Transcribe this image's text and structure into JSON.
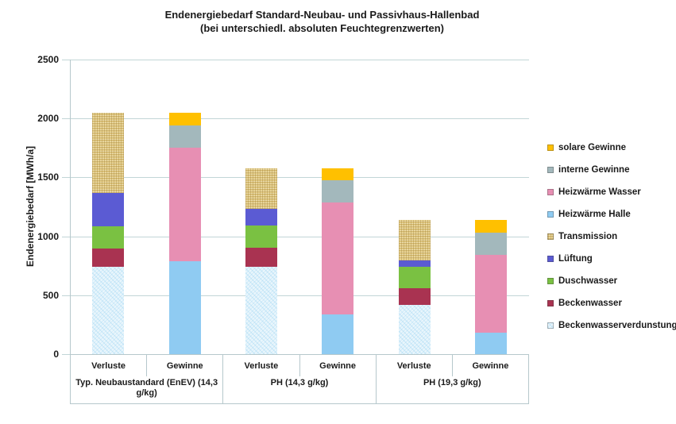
{
  "style": {
    "grid_color": "#C2D6D7",
    "axis_color": "#B6C8CC",
    "text_color": "#1A1A1A",
    "background": "#FFFFFF"
  },
  "chart_data": {
    "type": "bar",
    "stacked": true,
    "title_line1": "Endenergiebedarf Standard-Neubau- und  Passivhaus-Hallenbad",
    "title_line2": "(bei unterschiedl. absoluten Feuchtegrenzwerten)",
    "ylabel": "Endenergiebedarf  [MWh/a]",
    "unit": "MWh/a",
    "ylim": [
      0,
      2500
    ],
    "ytick_step": 500,
    "yticks": [
      0,
      500,
      1000,
      1500,
      2000,
      2500
    ],
    "grid": true,
    "legend_position": "right",
    "legend": [
      {
        "label": "solare Gewinne",
        "color": "#FFC000",
        "texture": "none"
      },
      {
        "label": "interne Gewinne",
        "color": "#A3B8BC",
        "texture": "none"
      },
      {
        "label": "Heizwärme Wasser",
        "color": "#E78FB3",
        "texture": "none"
      },
      {
        "label": "Heizwärme Halle",
        "color": "#8FCBF2",
        "texture": "none"
      },
      {
        "label": "Transmission",
        "color": "#E3CB84",
        "texture": "weave"
      },
      {
        "label": "Lüftung",
        "color": "#5B5BD3",
        "texture": "none"
      },
      {
        "label": "Duschwasser",
        "color": "#7AC142",
        "texture": "none"
      },
      {
        "label": "Beckenwasser",
        "color": "#A93351",
        "texture": "none"
      },
      {
        "label": "Beckenwasserverdunstung",
        "color": "#EAF6FC",
        "texture": "speckle"
      }
    ],
    "groups": [
      {
        "label": "Typ. Neubaustandard (EnEV) (14,3 g/kg)",
        "bars": [
          {
            "label": "Verluste",
            "segments": [
              {
                "series": "Beckenwasserverdunstung",
                "value": 740
              },
              {
                "series": "Beckenwasser",
                "value": 155
              },
              {
                "series": "Duschwasser",
                "value": 190
              },
              {
                "series": "Lüftung",
                "value": 285
              },
              {
                "series": "Transmission",
                "value": 680
              }
            ]
          },
          {
            "label": "Gewinne",
            "segments": [
              {
                "series": "Heizwärme Halle",
                "value": 790
              },
              {
                "series": "Heizwärme Wasser",
                "value": 960
              },
              {
                "series": "interne Gewinne",
                "value": 190
              },
              {
                "series": "solare Gewinne",
                "value": 110
              }
            ]
          }
        ]
      },
      {
        "label": "PH (14,3 g/kg)",
        "bars": [
          {
            "label": "Verluste",
            "segments": [
              {
                "series": "Beckenwasserverdunstung",
                "value": 740
              },
              {
                "series": "Beckenwasser",
                "value": 160
              },
              {
                "series": "Duschwasser",
                "value": 195
              },
              {
                "series": "Lüftung",
                "value": 135
              },
              {
                "series": "Transmission",
                "value": 345
              }
            ]
          },
          {
            "label": "Gewinne",
            "segments": [
              {
                "series": "Heizwärme Halle",
                "value": 340
              },
              {
                "series": "Heizwärme Wasser",
                "value": 945
              },
              {
                "series": "interne Gewinne",
                "value": 190
              },
              {
                "series": "solare Gewinne",
                "value": 100
              }
            ]
          }
        ]
      },
      {
        "label": "PH (19,3 g/kg)",
        "bars": [
          {
            "label": "Verluste",
            "segments": [
              {
                "series": "Beckenwasserverdunstung",
                "value": 420
              },
              {
                "series": "Beckenwasser",
                "value": 140
              },
              {
                "series": "Duschwasser",
                "value": 180
              },
              {
                "series": "Lüftung",
                "value": 55
              },
              {
                "series": "Transmission",
                "value": 345
              }
            ]
          },
          {
            "label": "Gewinne",
            "segments": [
              {
                "series": "Heizwärme Halle",
                "value": 180
              },
              {
                "series": "Heizwärme Wasser",
                "value": 660
              },
              {
                "series": "interne Gewinne",
                "value": 190
              },
              {
                "series": "solare Gewinne",
                "value": 110
              }
            ]
          }
        ]
      }
    ]
  }
}
